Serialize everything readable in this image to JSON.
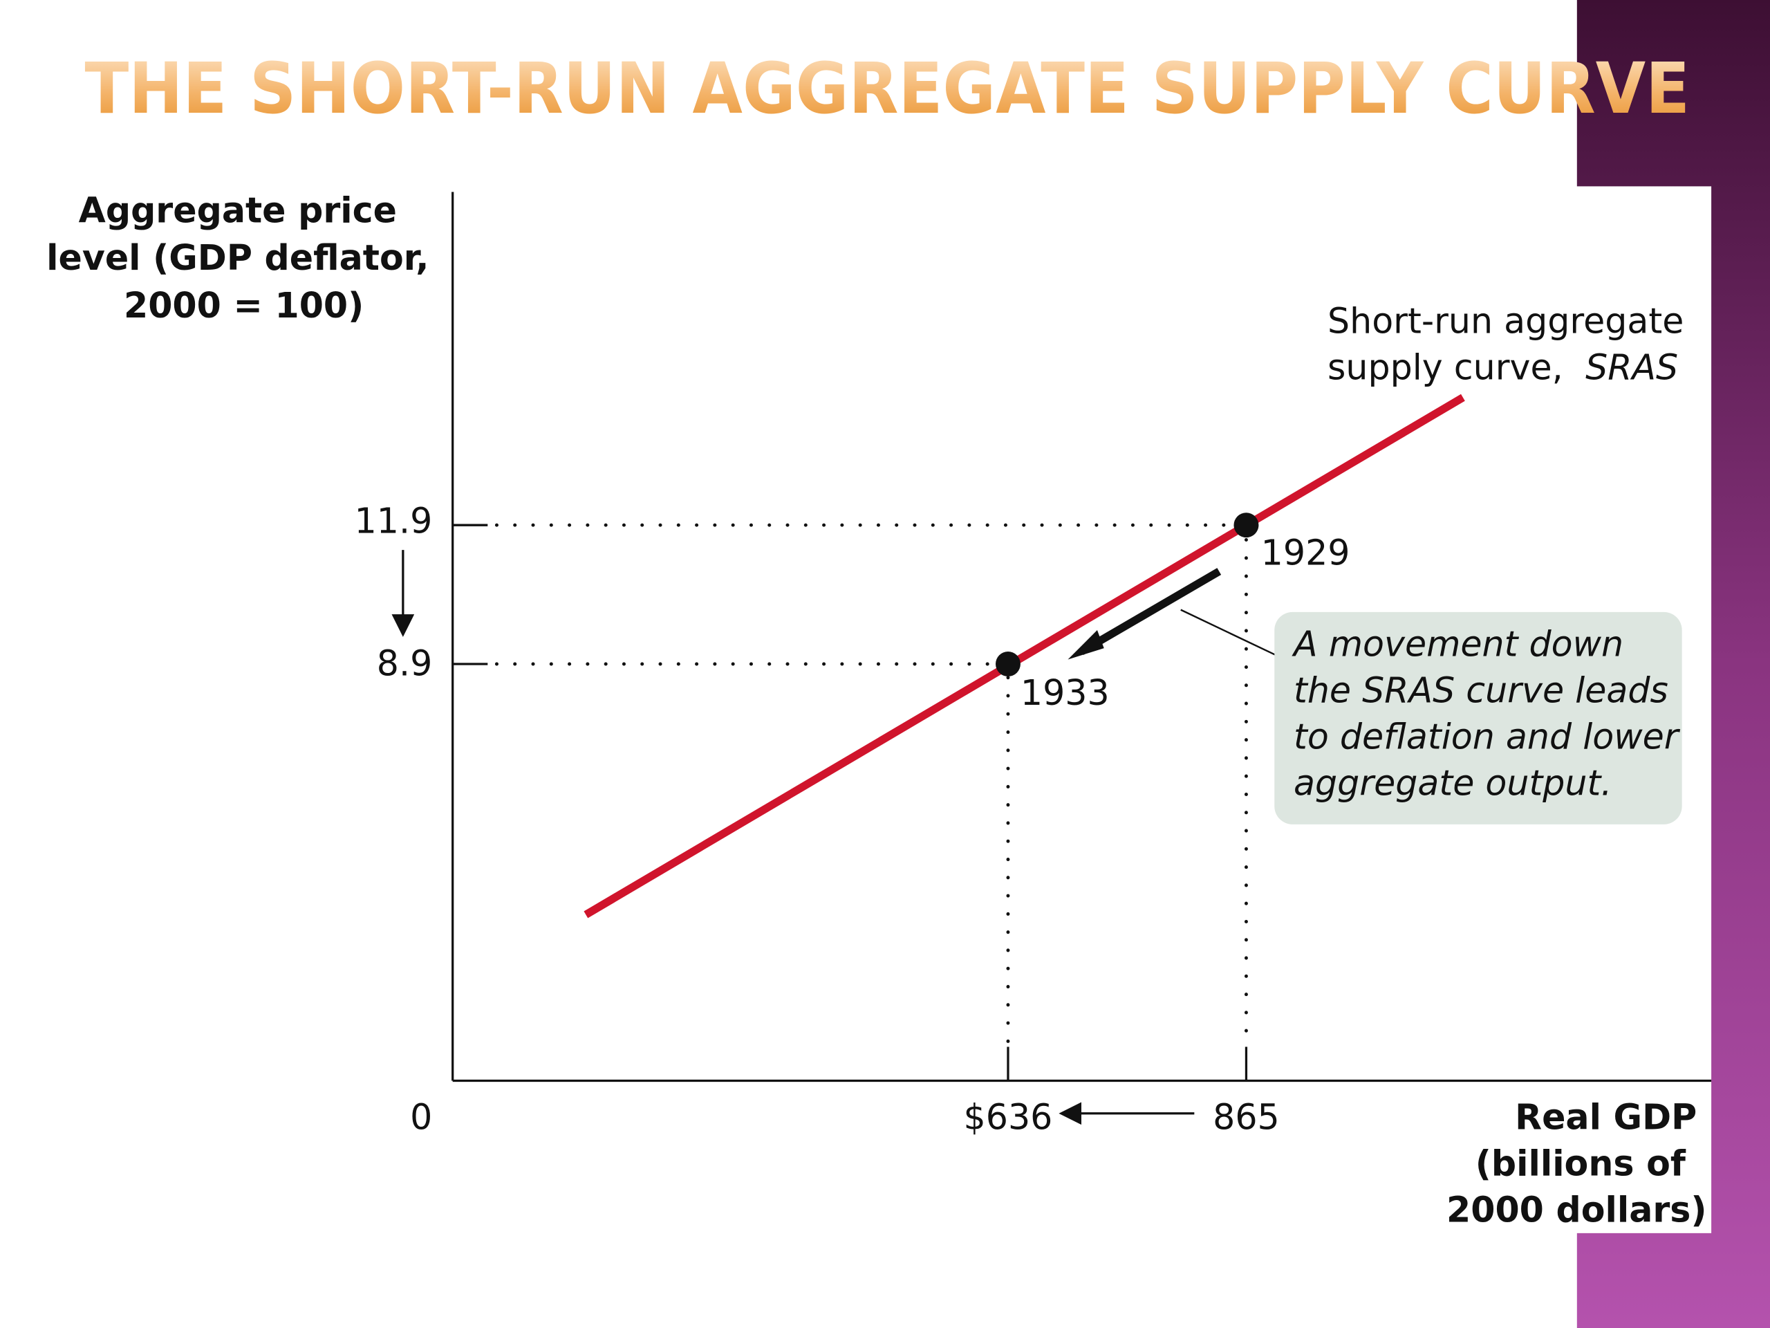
{
  "title": "THE SHORT-RUN AGGREGATE SUPPLY CURVE",
  "y_axis": {
    "label": [
      "Aggregate price",
      "level (GDP deflator,",
      "2000 = 100)"
    ],
    "ticks": [
      "11.9",
      "8.9"
    ]
  },
  "x_axis": {
    "label": [
      "Real GDP",
      "(billions of",
      "2000 dollars)"
    ],
    "ticks": [
      "$636",
      "865"
    ]
  },
  "origin": "0",
  "curve_label": {
    "lines": [
      "Short-run aggregate",
      "supply curve,"
    ],
    "name": "SRAS"
  },
  "points": [
    {
      "label": "1929"
    },
    {
      "label": "1933"
    }
  ],
  "annotation": [
    "A movement down",
    "the SRAS curve leads",
    "to deflation and lower",
    "aggregate output."
  ]
}
